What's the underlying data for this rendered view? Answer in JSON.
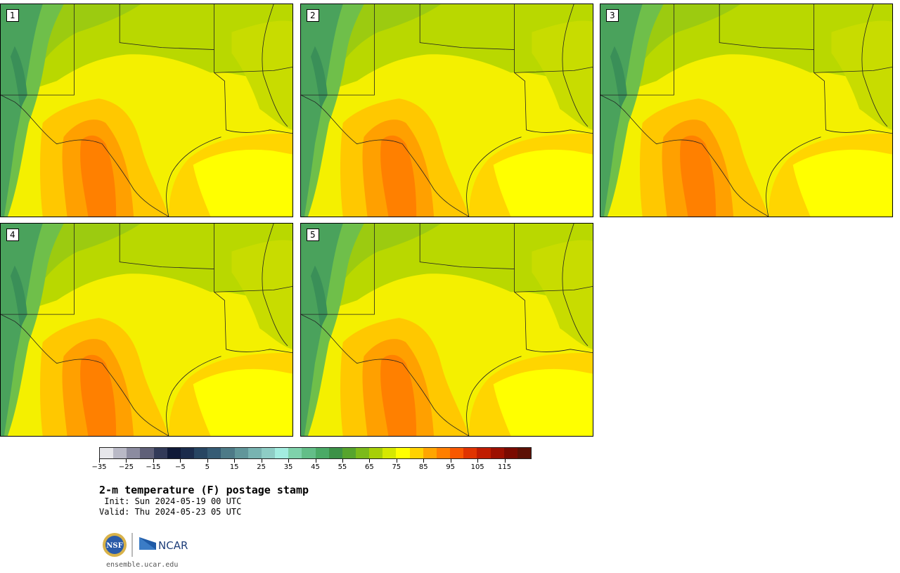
{
  "panels": [
    {
      "label": "1"
    },
    {
      "label": "2"
    },
    {
      "label": "3"
    },
    {
      "label": "4"
    },
    {
      "label": "5"
    }
  ],
  "colorbar": {
    "ticks": [
      "−35",
      "−25",
      "−15",
      "−5",
      "5",
      "15",
      "25",
      "35",
      "45",
      "55",
      "65",
      "75",
      "85",
      "95",
      "105",
      "115"
    ],
    "colors": [
      "#e6e6ea",
      "#b9b9c6",
      "#8c8ca0",
      "#5f6078",
      "#323a58",
      "#101a38",
      "#1b2c4c",
      "#274562",
      "#355b74",
      "#4d7a87",
      "#61969a",
      "#78b3b1",
      "#8ecdc5",
      "#a3ede0",
      "#7fd2ab",
      "#63be88",
      "#4aaa66",
      "#3c9247",
      "#56a42d",
      "#7bba1a",
      "#a7cf08",
      "#d5e800",
      "#ffff00",
      "#ffd200",
      "#ffa500",
      "#ff7f00",
      "#f85800",
      "#e03400",
      "#c01c00",
      "#9c1000",
      "#7a0a00",
      "#5c1005"
    ]
  },
  "title": "2-m temperature (F) postage stamp",
  "init": " Init: Sun 2024-05-19 00 UTC",
  "valid": "Valid: Thu 2024-05-23 05 UTC",
  "logos": {
    "left": "NSF",
    "right": "NCAR"
  },
  "url": "ensemble.ucar.edu"
}
